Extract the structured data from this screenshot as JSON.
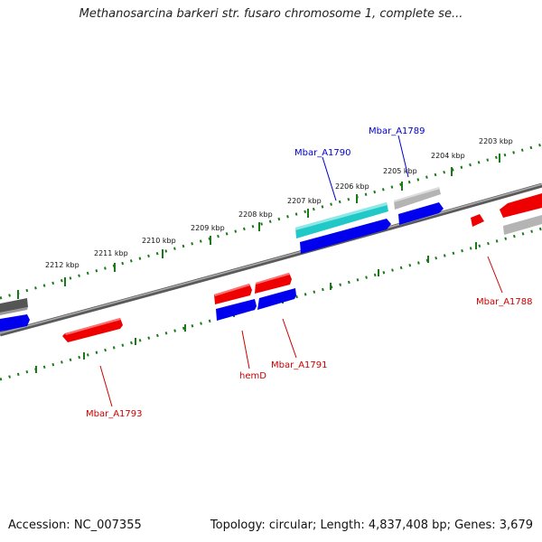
{
  "title": "Methanosarcina barkeri str. fusaro chromosome 1, complete se...",
  "footer": {
    "accession": "Accession: NC_007355",
    "summary": "Topology: circular; Length: 4,837,408 bp; Genes: 3,679"
  },
  "scale_labels": [
    "2212 kbp",
    "2211 kbp",
    "2210 kbp",
    "2209 kbp",
    "2208 kbp",
    "2207 kbp",
    "2206 kbp",
    "2205 kbp",
    "2204 kbp",
    "2203 kbp"
  ],
  "genes": [
    {
      "name": "Mbar_A1789",
      "color": "#0000cc"
    },
    {
      "name": "Mbar_A1790",
      "color": "#0000cc"
    },
    {
      "name": "Mbar_A1788",
      "color": "#cc0000"
    },
    {
      "name": "Mbar_A1791",
      "color": "#cc0000"
    },
    {
      "name": "hemD",
      "color": "#cc0000"
    },
    {
      "name": "Mbar_A1793",
      "color": "#cc0000"
    }
  ],
  "colors": {
    "forward_cds": "#0000ee",
    "reverse_cds": "#ee0000",
    "highlight": "#20c8c8",
    "other": "#b4b4b4",
    "dark": "#555555",
    "ticks": "#1a7a1a",
    "backbone": "#7a7a7a"
  }
}
